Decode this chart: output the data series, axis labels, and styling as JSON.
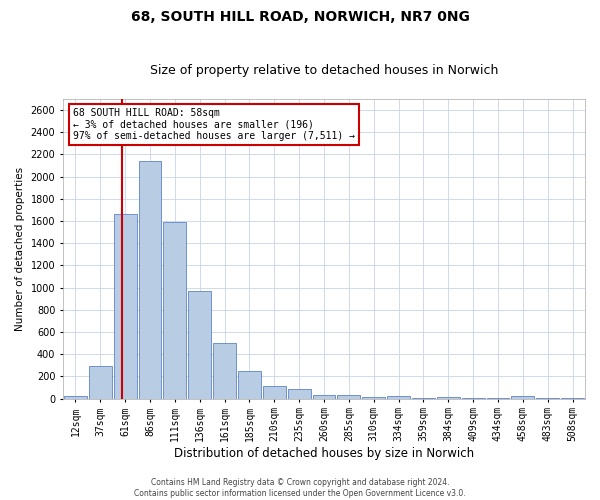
{
  "title1": "68, SOUTH HILL ROAD, NORWICH, NR7 0NG",
  "title2": "Size of property relative to detached houses in Norwich",
  "xlabel": "Distribution of detached houses by size in Norwich",
  "ylabel": "Number of detached properties",
  "annotation_line1": "68 SOUTH HILL ROAD: 58sqm",
  "annotation_line2": "← 3% of detached houses are smaller (196)",
  "annotation_line3": "97% of semi-detached houses are larger (7,511) →",
  "footer1": "Contains HM Land Registry data © Crown copyright and database right 2024.",
  "footer2": "Contains public sector information licensed under the Open Government Licence v3.0.",
  "categories": [
    "12sqm",
    "37sqm",
    "61sqm",
    "86sqm",
    "111sqm",
    "136sqm",
    "161sqm",
    "185sqm",
    "210sqm",
    "235sqm",
    "260sqm",
    "285sqm",
    "310sqm",
    "334sqm",
    "359sqm",
    "384sqm",
    "409sqm",
    "434sqm",
    "458sqm",
    "483sqm",
    "508sqm"
  ],
  "values": [
    20,
    290,
    1660,
    2140,
    1590,
    970,
    500,
    245,
    115,
    90,
    35,
    30,
    10,
    25,
    5,
    15,
    5,
    3,
    20,
    3,
    5
  ],
  "bar_color": "#b8cce4",
  "bar_edge_color": "#4472c4",
  "annotation_box_color": "#ffffff",
  "annotation_box_edge": "#cc0000",
  "marker_line_color": "#cc0000",
  "ylim": [
    0,
    2700
  ],
  "yticks": [
    0,
    200,
    400,
    600,
    800,
    1000,
    1200,
    1400,
    1600,
    1800,
    2000,
    2200,
    2400,
    2600
  ],
  "bg_color": "#ffffff",
  "grid_color": "#c8d4e8",
  "title1_fontsize": 10,
  "title2_fontsize": 9,
  "xlabel_fontsize": 8.5,
  "ylabel_fontsize": 7.5,
  "tick_fontsize": 7,
  "annotation_fontsize": 7,
  "footer_fontsize": 5.5
}
